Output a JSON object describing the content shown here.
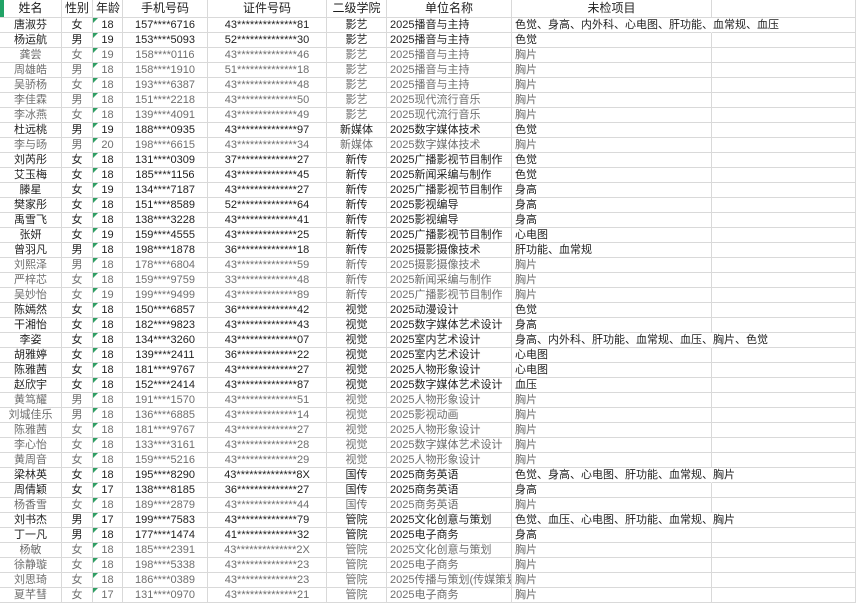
{
  "colors": {
    "accent_green": "#21a366",
    "grid_line": "#d9d9d9",
    "text_normal": "#1f1f1f",
    "text_dim": "#6e6e6e"
  },
  "table": {
    "headers": [
      "姓名",
      "性别",
      "年龄",
      "手机号码",
      "证件号码",
      "二级学院",
      "单位名称",
      "未检项目"
    ],
    "rows": [
      {
        "name": "唐淑芬",
        "gender": "女",
        "age": "18",
        "phone": "157****6716",
        "id_number": "43**************81",
        "college": "影艺",
        "unit": "2025播音与主持",
        "items": "色觉、身高、内外科、心电图、肝功能、血常规、血压",
        "dim": false
      },
      {
        "name": "杨运航",
        "gender": "男",
        "age": "19",
        "phone": "153****5093",
        "id_number": "52**************30",
        "college": "影艺",
        "unit": "2025播音与主持",
        "items": "色觉",
        "dim": false
      },
      {
        "name": "龚尝",
        "gender": "女",
        "age": "19",
        "phone": "158****0116",
        "id_number": "43**************46",
        "college": "影艺",
        "unit": "2025播音与主持",
        "items": "胸片",
        "dim": true
      },
      {
        "name": "周雄皓",
        "gender": "男",
        "age": "18",
        "phone": "158****1910",
        "id_number": "51**************18",
        "college": "影艺",
        "unit": "2025播音与主持",
        "items": "胸片",
        "dim": true
      },
      {
        "name": "吴骄杨",
        "gender": "女",
        "age": "18",
        "phone": "193****6387",
        "id_number": "43**************48",
        "college": "影艺",
        "unit": "2025播音与主持",
        "items": "胸片",
        "dim": true
      },
      {
        "name": "李佳霖",
        "gender": "男",
        "age": "18",
        "phone": "151****2218",
        "id_number": "43**************50",
        "college": "影艺",
        "unit": "2025现代流行音乐",
        "items": "胸片",
        "dim": true
      },
      {
        "name": "李冰燕",
        "gender": "女",
        "age": "18",
        "phone": "139****4091",
        "id_number": "43**************49",
        "college": "影艺",
        "unit": "2025现代流行音乐",
        "items": "胸片",
        "dim": true
      },
      {
        "name": "杜远桃",
        "gender": "男",
        "age": "19",
        "phone": "188****0935",
        "id_number": "43**************97",
        "college": "新媒体",
        "unit": "2025数字媒体技术",
        "items": "色觉",
        "dim": false
      },
      {
        "name": "李与旸",
        "gender": "男",
        "age": "20",
        "phone": "198****6615",
        "id_number": "43**************34",
        "college": "新媒体",
        "unit": "2025数字媒体技术",
        "items": "胸片",
        "dim": true
      },
      {
        "name": "刘芮彤",
        "gender": "女",
        "age": "18",
        "phone": "131****0309",
        "id_number": "37**************27",
        "college": "新传",
        "unit": "2025广播影视节目制作",
        "items": "色觉",
        "dim": false
      },
      {
        "name": "艾玉梅",
        "gender": "女",
        "age": "18",
        "phone": "185****1156",
        "id_number": "43**************45",
        "college": "新传",
        "unit": "2025新闻采编与制作",
        "items": "色觉",
        "dim": false
      },
      {
        "name": "滕星",
        "gender": "女",
        "age": "19",
        "phone": "134****7187",
        "id_number": "43**************27",
        "college": "新传",
        "unit": "2025广播影视节目制作",
        "items": "身高",
        "dim": false
      },
      {
        "name": "樊家彤",
        "gender": "女",
        "age": "18",
        "phone": "151****8589",
        "id_number": "52**************64",
        "college": "新传",
        "unit": "2025影视编导",
        "items": "身高",
        "dim": false
      },
      {
        "name": "禹雪飞",
        "gender": "女",
        "age": "18",
        "phone": "138****3228",
        "id_number": "43**************41",
        "college": "新传",
        "unit": "2025影视编导",
        "items": "身高",
        "dim": false
      },
      {
        "name": "张妍",
        "gender": "女",
        "age": "19",
        "phone": "159****4555",
        "id_number": "43**************25",
        "college": "新传",
        "unit": "2025广播影视节目制作",
        "items": "心电图",
        "dim": false
      },
      {
        "name": "曾羽凡",
        "gender": "男",
        "age": "18",
        "phone": "198****1878",
        "id_number": "36**************18",
        "college": "新传",
        "unit": "2025摄影摄像技术",
        "items": "肝功能、血常规",
        "dim": false
      },
      {
        "name": "刘熙泽",
        "gender": "男",
        "age": "18",
        "phone": "178****6804",
        "id_number": "43**************59",
        "college": "新传",
        "unit": "2025摄影摄像技术",
        "items": "胸片",
        "dim": true
      },
      {
        "name": "严梓芯",
        "gender": "女",
        "age": "18",
        "phone": "159****9759",
        "id_number": "33**************48",
        "college": "新传",
        "unit": "2025新闻采编与制作",
        "items": "胸片",
        "dim": true
      },
      {
        "name": "吴妙怡",
        "gender": "女",
        "age": "19",
        "phone": "199****9499",
        "id_number": "43**************89",
        "college": "新传",
        "unit": "2025广播影视节目制作",
        "items": "胸片",
        "dim": true
      },
      {
        "name": "陈嫣然",
        "gender": "女",
        "age": "18",
        "phone": "150****6857",
        "id_number": "36**************42",
        "college": "视觉",
        "unit": "2025动漫设计",
        "items": "色觉",
        "dim": false
      },
      {
        "name": "干湘怡",
        "gender": "女",
        "age": "18",
        "phone": "182****9823",
        "id_number": "43**************43",
        "college": "视觉",
        "unit": "2025数字媒体艺术设计",
        "items": "身高",
        "dim": false
      },
      {
        "name": "李姿",
        "gender": "女",
        "age": "18",
        "phone": "134****3260",
        "id_number": "43**************07",
        "college": "视觉",
        "unit": "2025室内艺术设计",
        "items": "身高、内外科、肝功能、血常规、血压、胸片、色觉",
        "dim": false
      },
      {
        "name": "胡雅婷",
        "gender": "女",
        "age": "18",
        "phone": "139****2411",
        "id_number": "36**************22",
        "college": "视觉",
        "unit": "2025室内艺术设计",
        "items": "心电图",
        "dim": false
      },
      {
        "name": "陈雅茜",
        "gender": "女",
        "age": "18",
        "phone": "181****9767",
        "id_number": "43**************27",
        "college": "视觉",
        "unit": "2025人物形象设计",
        "items": "心电图",
        "dim": false
      },
      {
        "name": "赵欣宇",
        "gender": "女",
        "age": "18",
        "phone": "152****2414",
        "id_number": "43**************87",
        "college": "视觉",
        "unit": "2025数字媒体艺术设计",
        "items": "血压",
        "dim": false
      },
      {
        "name": "黄笃耀",
        "gender": "男",
        "age": "18",
        "phone": "191****1570",
        "id_number": "43**************51",
        "college": "视觉",
        "unit": "2025人物形象设计",
        "items": "胸片",
        "dim": true
      },
      {
        "name": "刘城佳乐",
        "gender": "男",
        "age": "18",
        "phone": "136****6885",
        "id_number": "43**************14",
        "college": "视觉",
        "unit": "2025影视动画",
        "items": "胸片",
        "dim": true
      },
      {
        "name": "陈雅茜",
        "gender": "女",
        "age": "18",
        "phone": "181****9767",
        "id_number": "43**************27",
        "college": "视觉",
        "unit": "2025人物形象设计",
        "items": "胸片",
        "dim": true
      },
      {
        "name": "李心怡",
        "gender": "女",
        "age": "18",
        "phone": "133****3161",
        "id_number": "43**************28",
        "college": "视觉",
        "unit": "2025数字媒体艺术设计",
        "items": "胸片",
        "dim": true
      },
      {
        "name": "黄周音",
        "gender": "女",
        "age": "18",
        "phone": "159****5216",
        "id_number": "43**************29",
        "college": "视觉",
        "unit": "2025人物形象设计",
        "items": "胸片",
        "dim": true
      },
      {
        "name": "梁林英",
        "gender": "女",
        "age": "18",
        "phone": "195****8290",
        "id_number": "43**************8X",
        "college": "国传",
        "unit": "2025商务英语",
        "items": "色觉、身高、心电图、肝功能、血常规、胸片",
        "dim": false
      },
      {
        "name": "周倩颖",
        "gender": "女",
        "age": "17",
        "phone": "138****8185",
        "id_number": "36**************27",
        "college": "国传",
        "unit": "2025商务英语",
        "items": "身高",
        "dim": false
      },
      {
        "name": "杨香雪",
        "gender": "女",
        "age": "18",
        "phone": "189****2879",
        "id_number": "43**************44",
        "college": "国传",
        "unit": "2025商务英语",
        "items": "胸片",
        "dim": true
      },
      {
        "name": "刘书杰",
        "gender": "男",
        "age": "17",
        "phone": "199****7583",
        "id_number": "43**************79",
        "college": "管院",
        "unit": "2025文化创意与策划",
        "items": "色觉、血压、心电图、肝功能、血常规、胸片",
        "dim": false
      },
      {
        "name": "丁一凡",
        "gender": "男",
        "age": "18",
        "phone": "177****1474",
        "id_number": "41**************32",
        "college": "管院",
        "unit": "2025电子商务",
        "items": "身高",
        "dim": false
      },
      {
        "name": "杨敏",
        "gender": "女",
        "age": "18",
        "phone": "185****2391",
        "id_number": "43**************2X",
        "college": "管院",
        "unit": "2025文化创意与策划",
        "items": "胸片",
        "dim": true
      },
      {
        "name": "徐静璇",
        "gender": "女",
        "age": "18",
        "phone": "198****5338",
        "id_number": "43**************23",
        "college": "管院",
        "unit": "2025电子商务",
        "items": "胸片",
        "dim": true
      },
      {
        "name": "刘思琦",
        "gender": "女",
        "age": "18",
        "phone": "186****0389",
        "id_number": "43**************23",
        "college": "管院",
        "unit": "2025传播与策划(传媒策划与管",
        "items": "胸片",
        "dim": true
      },
      {
        "name": "夏芊彗",
        "gender": "女",
        "age": "17",
        "phone": "131****0970",
        "id_number": "43**************21",
        "college": "管院",
        "unit": "2025电子商务",
        "items": "胸片",
        "dim": true
      }
    ]
  }
}
